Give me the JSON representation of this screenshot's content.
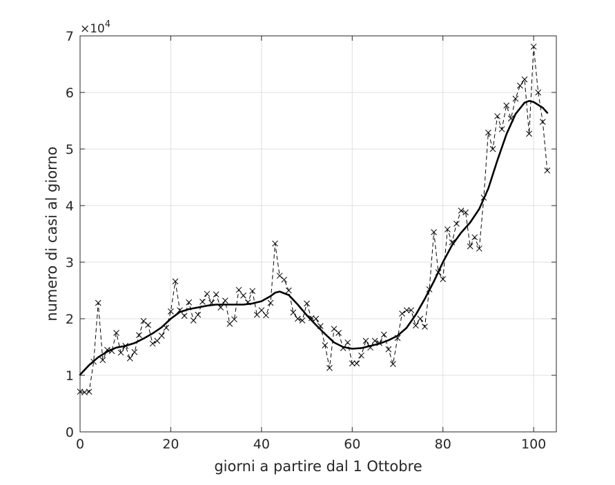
{
  "chart_data": {
    "type": "line",
    "title": "",
    "xlabel": "giorni a partire dal 1 Ottobre",
    "ylabel": "numero di casi al giorno",
    "y_exponent_label": {
      "base": "×10",
      "power": "4"
    },
    "xlim": [
      0,
      105
    ],
    "ylim": [
      0,
      70000
    ],
    "x_ticks": [
      0,
      20,
      40,
      60,
      80,
      100
    ],
    "x_tick_labels": [
      "0",
      "20",
      "40",
      "60",
      "80",
      "100"
    ],
    "y_ticks": [
      0,
      10000,
      20000,
      30000,
      40000,
      50000,
      60000,
      70000
    ],
    "y_tick_labels": [
      "0",
      "1",
      "2",
      "3",
      "4",
      "5",
      "6",
      "7"
    ],
    "grid": true,
    "box": true,
    "series": [
      {
        "style": "dashed-x-markers",
        "color": "#000000",
        "x": [
          0,
          1,
          2,
          3,
          4,
          5,
          6,
          7,
          8,
          9,
          10,
          11,
          12,
          13,
          14,
          15,
          16,
          17,
          18,
          19,
          20,
          21,
          22,
          23,
          24,
          25,
          26,
          27,
          28,
          29,
          30,
          31,
          32,
          33,
          34,
          35,
          36,
          37,
          38,
          39,
          40,
          41,
          42,
          43,
          44,
          45,
          46,
          47,
          48,
          49,
          50,
          51,
          52,
          53,
          54,
          55,
          56,
          57,
          58,
          59,
          60,
          61,
          62,
          63,
          64,
          65,
          66,
          67,
          68,
          69,
          70,
          71,
          72,
          73,
          74,
          75,
          76,
          77,
          78,
          79,
          80,
          81,
          82,
          83,
          84,
          85,
          86,
          87,
          88,
          89,
          90,
          91,
          92,
          93,
          94,
          95,
          96,
          97,
          98,
          99,
          100,
          101,
          102,
          103
        ],
        "y": [
          7100,
          7000,
          7100,
          12400,
          22800,
          12700,
          14500,
          14300,
          17500,
          14000,
          15200,
          13000,
          14100,
          17100,
          19600,
          18900,
          15600,
          16100,
          17000,
          18400,
          21300,
          26600,
          21500,
          20500,
          22900,
          19700,
          20700,
          23000,
          24400,
          22800,
          24300,
          22000,
          23200,
          19100,
          19900,
          25100,
          24100,
          22900,
          24900,
          20700,
          21500,
          20600,
          22800,
          33300,
          27600,
          26900,
          25000,
          21100,
          20000,
          19700,
          22700,
          20100,
          20000,
          18700,
          15300,
          11300,
          18200,
          17500,
          14800,
          15800,
          12100,
          12100,
          13500,
          16100,
          14900,
          16100,
          15700,
          17200,
          14600,
          12000,
          16600,
          20900,
          21500,
          21500,
          18800,
          20000,
          18600,
          25200,
          35300,
          28200,
          27000,
          35800,
          33500,
          36800,
          39100,
          38800,
          32800,
          34400,
          32400,
          41400,
          52900,
          50000,
          55800,
          53500,
          57700,
          55400,
          58900,
          61200,
          62300,
          52700,
          68100,
          60000,
          54800,
          46200
        ]
      },
      {
        "style": "solid-smooth",
        "color": "#000000",
        "x": [
          0,
          2,
          4,
          6,
          8,
          10,
          12,
          14,
          16,
          18,
          20,
          22,
          24,
          26,
          28,
          30,
          32,
          34,
          36,
          38,
          40,
          42,
          43,
          44,
          46,
          48,
          50,
          52,
          54,
          56,
          58,
          60,
          62,
          64,
          66,
          68,
          70,
          72,
          74,
          76,
          78,
          80,
          82,
          84,
          86,
          88,
          90,
          92,
          94,
          96,
          98,
          99,
          100,
          102,
          103
        ],
        "y": [
          10100,
          11800,
          13200,
          14200,
          14900,
          15200,
          15700,
          16500,
          17400,
          18500,
          20000,
          21200,
          21700,
          22000,
          22300,
          22500,
          22500,
          22500,
          22500,
          22700,
          23100,
          24000,
          24600,
          24800,
          24200,
          22500,
          20600,
          18900,
          17300,
          15800,
          15000,
          14700,
          14800,
          15200,
          15600,
          16200,
          17000,
          18400,
          20700,
          23500,
          26600,
          30000,
          33000,
          35200,
          37000,
          39400,
          43000,
          48000,
          52600,
          56200,
          58200,
          58500,
          58300,
          57300,
          56400
        ]
      }
    ]
  }
}
